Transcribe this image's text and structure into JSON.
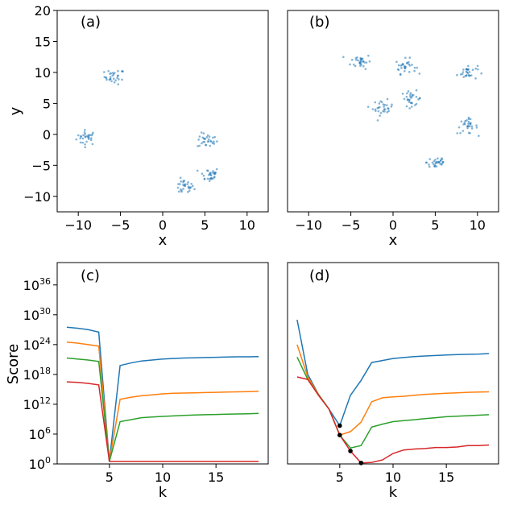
{
  "figure": {
    "colors": {
      "c0": "#1f77b4",
      "c1": "#ff7f0e",
      "c2": "#2ca02c",
      "c3": "#d62728",
      "marker": "#000000"
    }
  },
  "chart_data": [
    {
      "type": "scatter",
      "panel_label": "(a)",
      "xlabel": "x",
      "ylabel": "y",
      "xlim": [
        -12.5,
        12.5
      ],
      "ylim": [
        -12.5,
        20
      ],
      "xticks": [
        -10,
        -5,
        0,
        5,
        10
      ],
      "xtick_labels": [
        "−10",
        "−5",
        "0",
        "5",
        "10"
      ],
      "yticks": [
        -10,
        -5,
        0,
        5,
        10,
        15,
        20
      ],
      "ytick_labels": [
        "−10",
        "−5",
        "0",
        "5",
        "10",
        "15",
        "20"
      ],
      "cluster_centers": [
        [
          -9.0,
          -0.5
        ],
        [
          -5.7,
          9.3
        ],
        [
          2.5,
          -8.5
        ],
        [
          5.3,
          -1.0
        ],
        [
          5.5,
          -6.5
        ]
      ],
      "point_color": "#1f77b4"
    },
    {
      "type": "scatter",
      "panel_label": "(b)",
      "xlabel": "x",
      "ylabel": "",
      "xlim": [
        -12.5,
        12.5
      ],
      "ylim": [
        -12.5,
        20
      ],
      "xticks": [
        -10,
        -5,
        0,
        5,
        10
      ],
      "xtick_labels": [
        "−10",
        "−5",
        "0",
        "5",
        "10"
      ],
      "cluster_centers": [
        [
          -3.8,
          11.8
        ],
        [
          1.5,
          11.0
        ],
        [
          8.8,
          10.0
        ],
        [
          -1.2,
          4.3
        ],
        [
          2.2,
          5.8
        ],
        [
          8.8,
          1.3
        ],
        [
          5.2,
          -4.5
        ]
      ],
      "point_color": "#1f77b4"
    },
    {
      "type": "line",
      "panel_label": "(c)",
      "xlabel": "k",
      "ylabel": "Score",
      "yscale": "log",
      "xlim": [
        0.1,
        19.9
      ],
      "ylim_exp": [
        0,
        40.5
      ],
      "xticks": [
        5,
        10,
        15
      ],
      "xtick_labels": [
        "5",
        "10",
        "15"
      ],
      "yticks_exp": [
        0,
        6,
        12,
        18,
        24,
        30,
        36
      ],
      "ytick_base": "10",
      "ytick_exps": [
        "0",
        "6",
        "12",
        "18",
        "24",
        "30",
        "36"
      ],
      "x": [
        1,
        2,
        3,
        4,
        5,
        6,
        7,
        8,
        9,
        10,
        11,
        12,
        13,
        14,
        15,
        16,
        17,
        18,
        19
      ],
      "series": [
        {
          "color": "#1f77b4",
          "log10_values": [
            27.5,
            27.3,
            27.0,
            26.5,
            0.5,
            19.8,
            20.3,
            20.7,
            20.9,
            21.1,
            21.2,
            21.3,
            21.35,
            21.4,
            21.45,
            21.5,
            21.55,
            21.55,
            21.6
          ]
        },
        {
          "color": "#ff7f0e",
          "log10_values": [
            24.5,
            24.3,
            24.0,
            23.7,
            0.5,
            13.0,
            13.4,
            13.7,
            13.9,
            14.1,
            14.2,
            14.25,
            14.3,
            14.35,
            14.4,
            14.45,
            14.5,
            14.55,
            14.6
          ]
        },
        {
          "color": "#2ca02c",
          "log10_values": [
            21.3,
            21.1,
            20.9,
            20.6,
            0.5,
            8.5,
            8.9,
            9.3,
            9.45,
            9.55,
            9.65,
            9.75,
            9.85,
            9.9,
            9.95,
            10.0,
            10.05,
            10.1,
            10.15
          ]
        },
        {
          "color": "#d62728",
          "log10_values": [
            16.5,
            16.4,
            16.2,
            15.9,
            0.5,
            0.5,
            0.5,
            0.5,
            0.5,
            0.5,
            0.5,
            0.5,
            0.5,
            0.5,
            0.5,
            0.5,
            0.5,
            0.5,
            0.5
          ]
        }
      ]
    },
    {
      "type": "line",
      "panel_label": "(d)",
      "xlabel": "k",
      "ylabel": "",
      "yscale": "log",
      "xlim": [
        0.1,
        19.9
      ],
      "ylim_exp": [
        0,
        40.5
      ],
      "xticks": [
        5,
        10,
        15
      ],
      "xtick_labels": [
        "5",
        "10",
        "15"
      ],
      "x": [
        1,
        2,
        3,
        4,
        5,
        6,
        7,
        8,
        9,
        10,
        11,
        12,
        13,
        14,
        15,
        16,
        17,
        18,
        19
      ],
      "series": [
        {
          "color": "#1f77b4",
          "log10_values": [
            29.0,
            18.0,
            14.0,
            11.0,
            7.7,
            13.8,
            16.8,
            20.4,
            20.8,
            21.2,
            21.4,
            21.6,
            21.7,
            21.8,
            21.9,
            22.0,
            22.05,
            22.1,
            22.2
          ]
        },
        {
          "color": "#ff7f0e",
          "log10_values": [
            24.0,
            17.5,
            14.0,
            11.0,
            5.8,
            6.5,
            8.4,
            12.5,
            13.3,
            13.5,
            13.6,
            13.8,
            14.0,
            14.1,
            14.2,
            14.3,
            14.4,
            14.45,
            14.5
          ]
        },
        {
          "color": "#2ca02c",
          "log10_values": [
            21.5,
            17.0,
            13.9,
            11.0,
            5.8,
            3.2,
            3.7,
            7.4,
            8.0,
            8.5,
            8.7,
            8.9,
            9.1,
            9.3,
            9.5,
            9.6,
            9.7,
            9.8,
            9.9
          ]
        },
        {
          "color": "#d62728",
          "log10_values": [
            17.5,
            17.0,
            13.8,
            11.0,
            5.8,
            2.6,
            0.2,
            0.3,
            0.8,
            2.1,
            2.8,
            3.0,
            3.1,
            3.3,
            3.3,
            3.4,
            3.7,
            3.7,
            3.8
          ]
        }
      ],
      "markers": [
        [
          5,
          7.7
        ],
        [
          5,
          5.8
        ],
        [
          6,
          2.6
        ],
        [
          7,
          0.2
        ]
      ]
    }
  ]
}
